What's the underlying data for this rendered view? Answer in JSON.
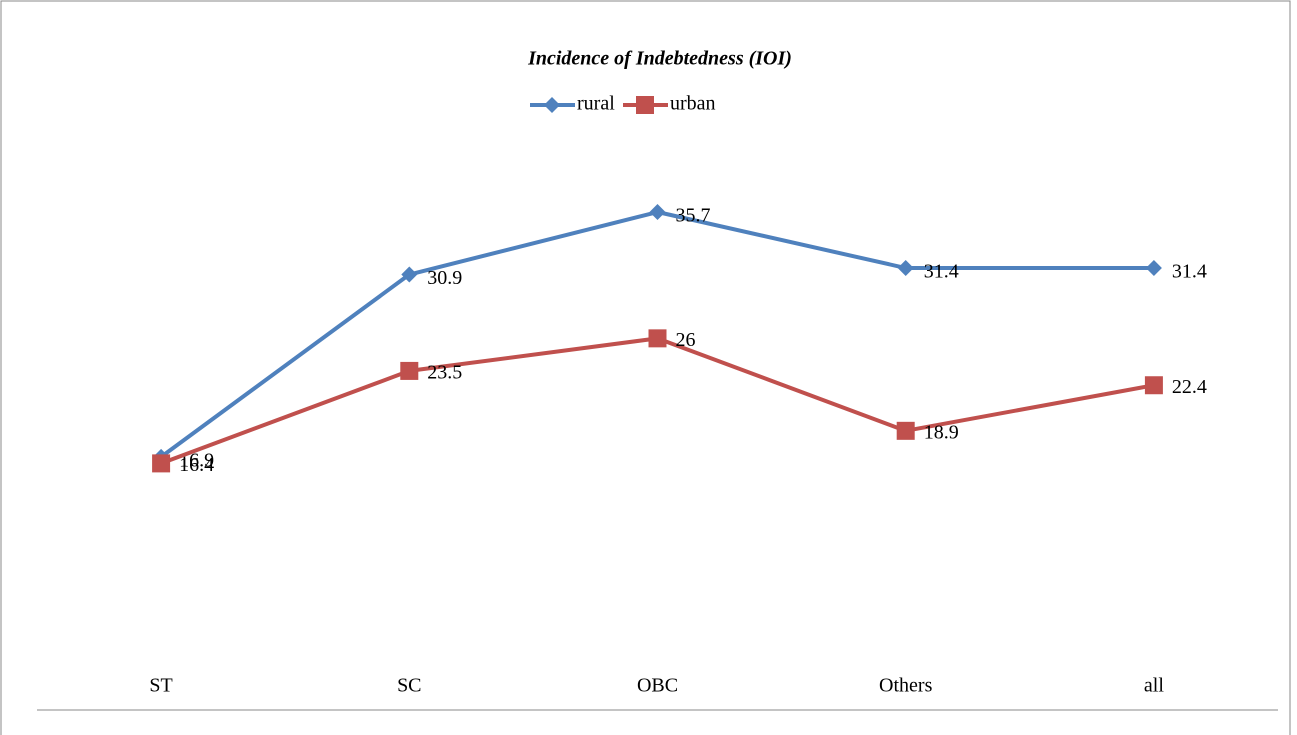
{
  "chart_data": {
    "type": "line",
    "title": "Incidence of Indebtedness (IOI)",
    "categories": [
      "ST",
      "SC",
      "OBC",
      "Others",
      "all"
    ],
    "series": [
      {
        "name": "rural",
        "color": "#4f81bd",
        "marker": "diamond",
        "values": [
          16.9,
          30.9,
          35.7,
          31.4,
          31.4
        ]
      },
      {
        "name": "urban",
        "color": "#c0504d",
        "marker": "square",
        "values": [
          16.4,
          23.5,
          26,
          18.9,
          22.4
        ]
      }
    ],
    "ylim": [
      0,
      40
    ],
    "legend": "top"
  }
}
